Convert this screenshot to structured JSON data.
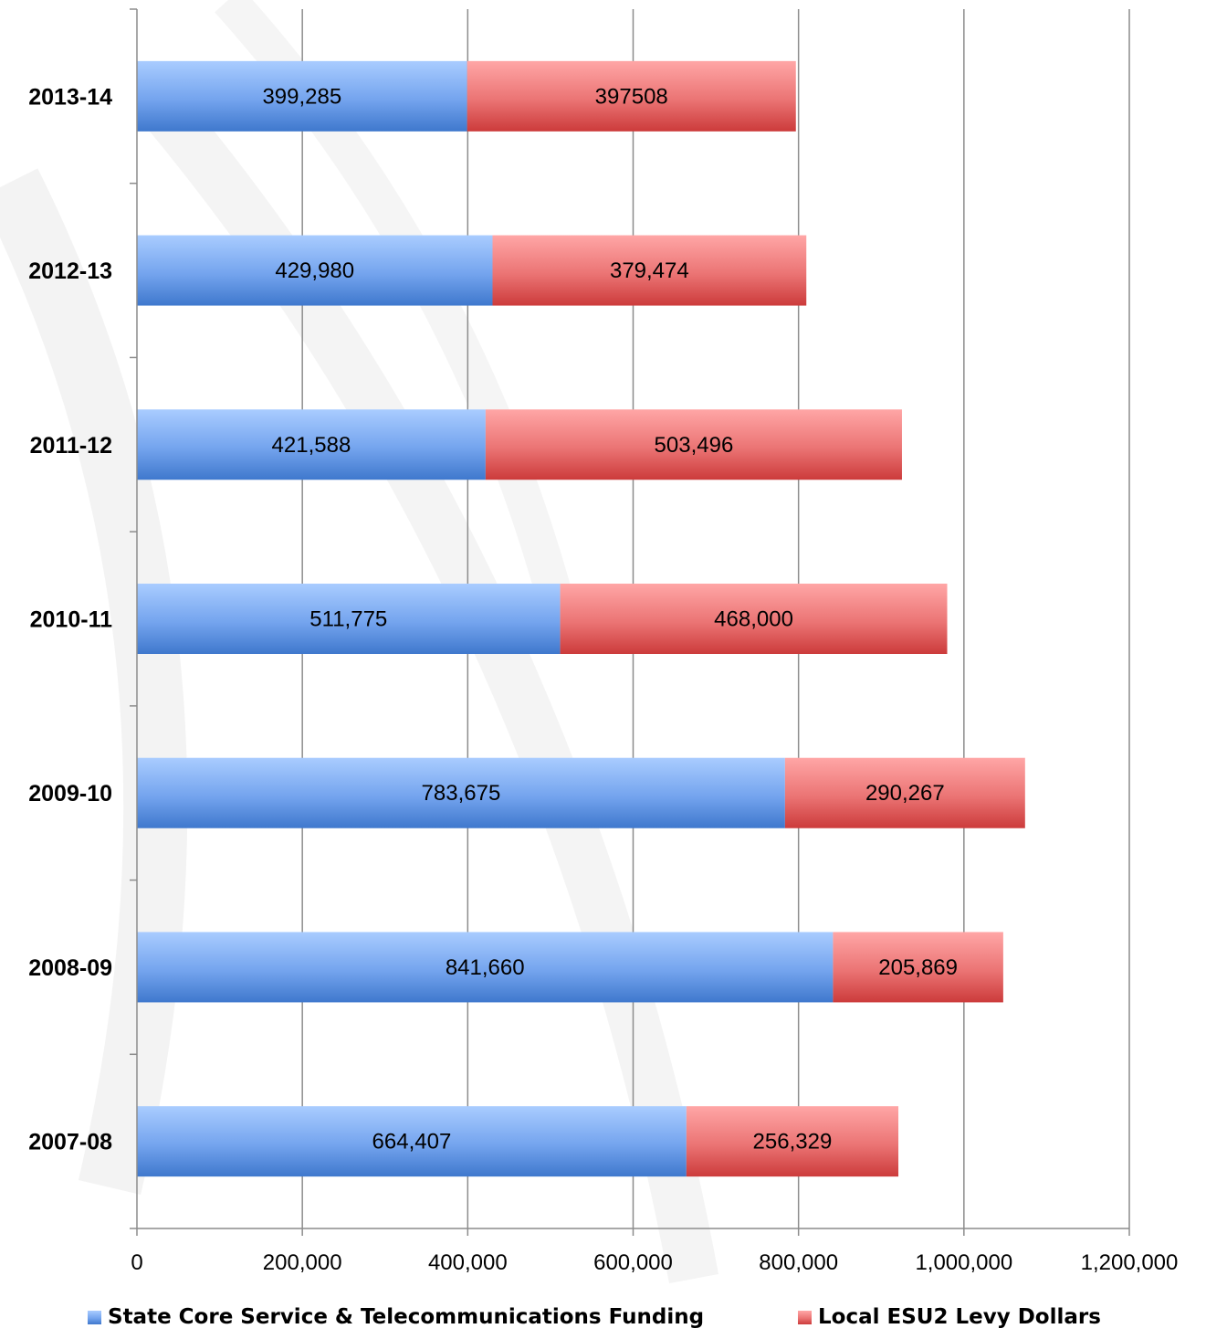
{
  "chart_data": {
    "type": "bar",
    "orientation": "horizontal",
    "stacked": true,
    "categories": [
      "2013-14",
      "2012-13",
      "2011-12",
      "2010-11",
      "2009-10",
      "2008-09",
      "2007-08"
    ],
    "category_labels": [
      "2013-14",
      "2012-13",
      "2011-12",
      "2010-11",
      "2009-10",
      "2008-09",
      "2007-08"
    ],
    "series": [
      {
        "name": "State Core Service & Telecommunications Funding",
        "color": "#4f81d6",
        "values": [
          399285,
          429980,
          421588,
          511775,
          783675,
          841660,
          664407
        ],
        "labels": [
          "399,285",
          "429,980",
          "421,588",
          "511,775",
          "783,675",
          "841,660",
          "664,407"
        ]
      },
      {
        "name": "Local ESU2 Levy Dollars",
        "color": "#d94a4a",
        "values": [
          397508,
          379474,
          503496,
          468000,
          290267,
          205869,
          256329
        ],
        "labels": [
          "397508",
          "379,474",
          "503,496",
          "468,000",
          "290,267",
          "205,869",
          "256,329"
        ]
      }
    ],
    "xlim": [
      0,
      1200000
    ],
    "x_ticks": [
      0,
      200000,
      400000,
      600000,
      800000,
      1000000,
      1200000
    ],
    "x_tick_labels": [
      "0",
      "200,000",
      "400,000",
      "600,000",
      "800,000",
      "1,000,000",
      "1,200,000"
    ],
    "grid": "vertical",
    "legend": "bottom"
  }
}
